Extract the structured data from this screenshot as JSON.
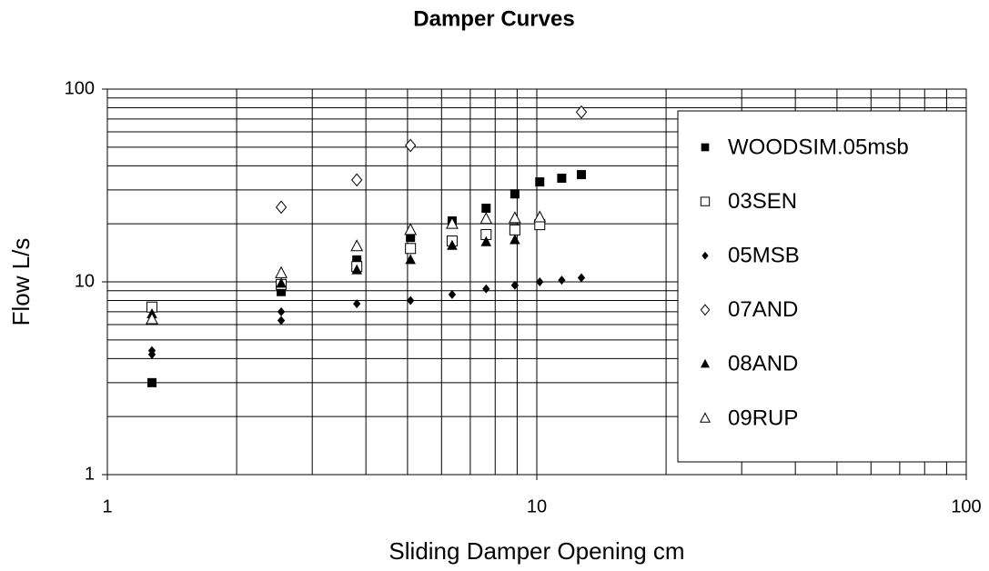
{
  "chart_data": {
    "type": "scatter",
    "title": "Damper Curves",
    "xlabel": "Sliding Damper Opening cm",
    "ylabel": "Flow L/s",
    "xscale": "log",
    "yscale": "log",
    "grid": true,
    "legend": "right",
    "xlim": [
      1,
      100
    ],
    "ylim": [
      1,
      100
    ],
    "xticks": [
      1,
      10,
      100
    ],
    "yticks": [
      1,
      10,
      100
    ],
    "xminor_ticks": [
      2,
      3,
      4,
      5,
      6,
      7,
      8,
      9,
      20,
      30,
      40,
      50,
      60,
      70,
      80,
      90
    ],
    "yminor_ticks": [
      2,
      3,
      4,
      5,
      6,
      7,
      8,
      9,
      20,
      30,
      40,
      50,
      60,
      70,
      80,
      90
    ],
    "series": [
      {
        "name": "WOODSIM.05msb",
        "marker": "square-filled",
        "color": "#000000",
        "x": [
          1.27,
          2.54,
          3.81,
          5.08,
          6.35,
          7.62,
          8.89,
          10.16,
          11.43,
          12.7
        ],
        "values": [
          3.0,
          8.9,
          13.0,
          17.0,
          20.7,
          24.1,
          28.6,
          33.0,
          34.5,
          36.0
        ]
      },
      {
        "name": "03SEN",
        "marker": "square-open",
        "color": "#000000",
        "x": [
          1.27,
          2.54,
          3.81,
          5.08,
          6.35,
          7.62,
          8.89,
          10.16
        ],
        "values": [
          7.4,
          9.7,
          12.0,
          14.9,
          16.3,
          17.6,
          18.6,
          19.8
        ]
      },
      {
        "name": "05MSB",
        "marker": "diamond-filled",
        "color": "#000000",
        "x": [
          1.27,
          1.27,
          2.54,
          2.54,
          3.81,
          5.08,
          6.35,
          7.62,
          8.89,
          10.16,
          11.43,
          12.7
        ],
        "values": [
          4.4,
          4.2,
          7.0,
          6.3,
          7.7,
          8.0,
          8.6,
          9.2,
          9.6,
          10.0,
          10.2,
          10.5
        ]
      },
      {
        "name": "07AND",
        "marker": "diamond-open",
        "color": "#000000",
        "x": [
          2.54,
          3.81,
          5.08,
          12.7
        ],
        "values": [
          24.4,
          33.8,
          51,
          76
        ]
      },
      {
        "name": "08AND",
        "marker": "triangle-filled",
        "color": "#000000",
        "x": [
          1.27,
          2.54,
          3.81,
          5.08,
          6.35,
          7.62,
          8.89
        ],
        "values": [
          6.8,
          9.8,
          11.5,
          13.0,
          15.4,
          16.1,
          16.5
        ]
      },
      {
        "name": "09RUP",
        "marker": "triangle-open",
        "color": "#000000",
        "x": [
          1.27,
          2.54,
          3.81,
          5.08,
          6.35,
          7.62,
          8.89,
          10.16
        ],
        "values": [
          6.4,
          11.1,
          15.3,
          18.6,
          20.0,
          21.2,
          21.4,
          21.6
        ]
      }
    ]
  }
}
